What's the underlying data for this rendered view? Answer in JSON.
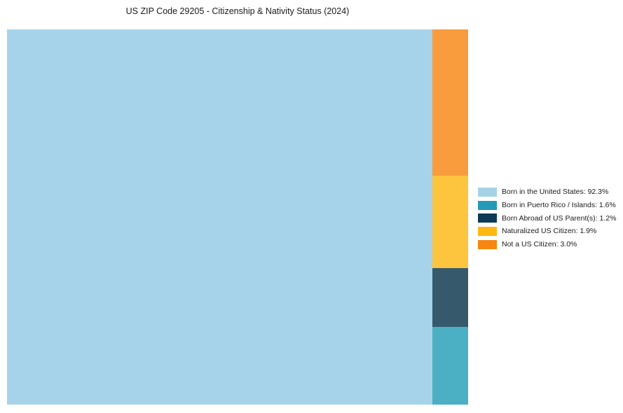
{
  "title": "US ZIP Code 29205 - Citizenship & Nativity Status (2024)",
  "chart_data": {
    "type": "treemap",
    "title": "US ZIP Code 29205 - Citizenship & Nativity Status (2024)",
    "legend_position": "right",
    "layout_note": "Single large block on left for majority category; remaining categories stacked in a right-side column in reverse legend order (top to bottom: Not a US Citizen, Naturalized US Citizen, Born Abroad of US Parent(s), Born in Puerto Rico / Islands)",
    "items": [
      {
        "label": "Born in the United States",
        "pct": 92.3,
        "legend_text": "Born in the United States: 92.3%",
        "legend_color": "#a6d2e8",
        "rect_color": "#a6d3ea"
      },
      {
        "label": "Born in Puerto Rico / Islands",
        "pct": 1.6,
        "legend_text": "Born in Puerto Rico / Islands: 1.6%",
        "legend_color": "#2599b8",
        "rect_color": "#4bb0c3"
      },
      {
        "label": "Born Abroad of US Parent(s)",
        "pct": 1.2,
        "legend_text": "Born Abroad of US Parent(s): 1.2%",
        "legend_color": "#0d3a56",
        "rect_color": "#36596c"
      },
      {
        "label": "Naturalized US Citizen",
        "pct": 1.9,
        "legend_text": "Naturalized US Citizen: 1.9%",
        "legend_color": "#fdb813",
        "rect_color": "#fdc53d"
      },
      {
        "label": "Not a US Citizen",
        "pct": 3.0,
        "legend_text": "Not a US Citizen: 3.0%",
        "legend_color": "#f6860f",
        "rect_color": "#f99c3d"
      }
    ]
  }
}
